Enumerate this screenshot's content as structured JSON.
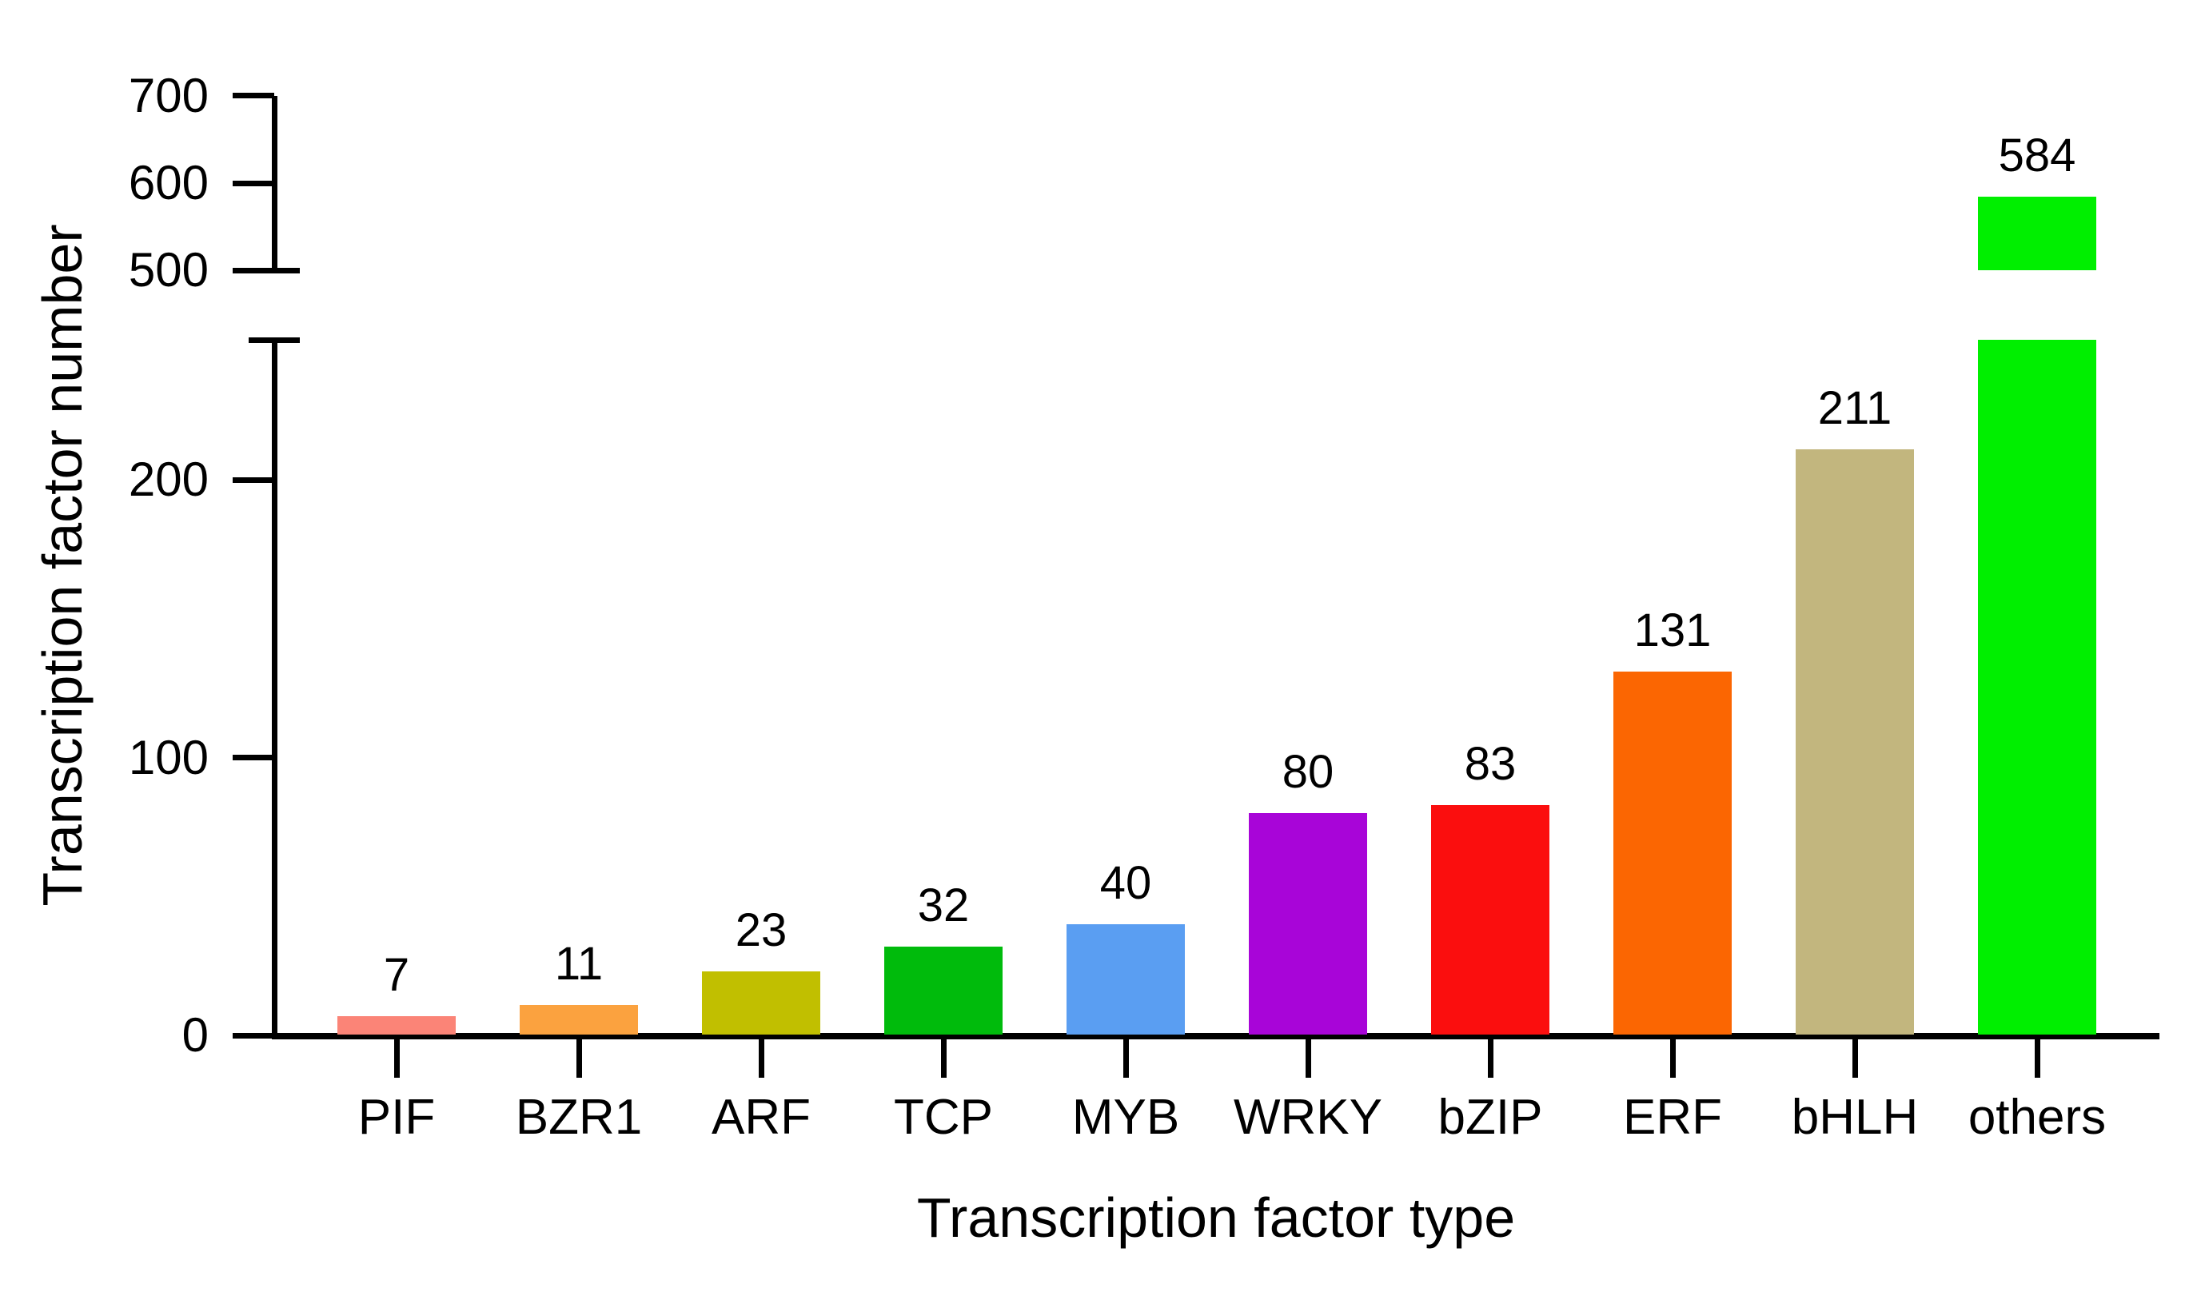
{
  "chart_data": {
    "type": "bar",
    "title": "",
    "xlabel": "Transcription factor type",
    "ylabel": "Transcription factor number",
    "categories": [
      "PIF",
      "BZR1",
      "ARF",
      "TCP",
      "MYB",
      "WRKY",
      "bZIP",
      "ERF",
      "bHLH",
      "others"
    ],
    "values": [
      7,
      11,
      23,
      32,
      40,
      80,
      83,
      131,
      211,
      584
    ],
    "value_labels": [
      "7",
      "11",
      "23",
      "32",
      "40",
      "80",
      "83",
      "131",
      "211",
      "584"
    ],
    "bar_colors": [
      "#FB8477",
      "#FBA23F",
      "#C1BF00",
      "#00BB0C",
      "#5A9EF2",
      "#A805D8",
      "#FB0E0E",
      "#FB6602",
      "#C2B67E",
      "#00EF00"
    ],
    "broken_y_axis": true,
    "y_axis": {
      "lower_panel": {
        "min": 0,
        "max": 250,
        "ticks": [
          0,
          100,
          200
        ],
        "tick_labels": [
          "0",
          "100",
          "200"
        ]
      },
      "upper_panel": {
        "min": 500,
        "max": 700,
        "ticks": [
          500,
          600,
          700
        ],
        "tick_labels": [
          "500",
          "600",
          "700"
        ]
      }
    },
    "grid": false,
    "legend": null,
    "axis_color": "#000000",
    "text_color": "#000000",
    "background_color": "#ffffff"
  }
}
